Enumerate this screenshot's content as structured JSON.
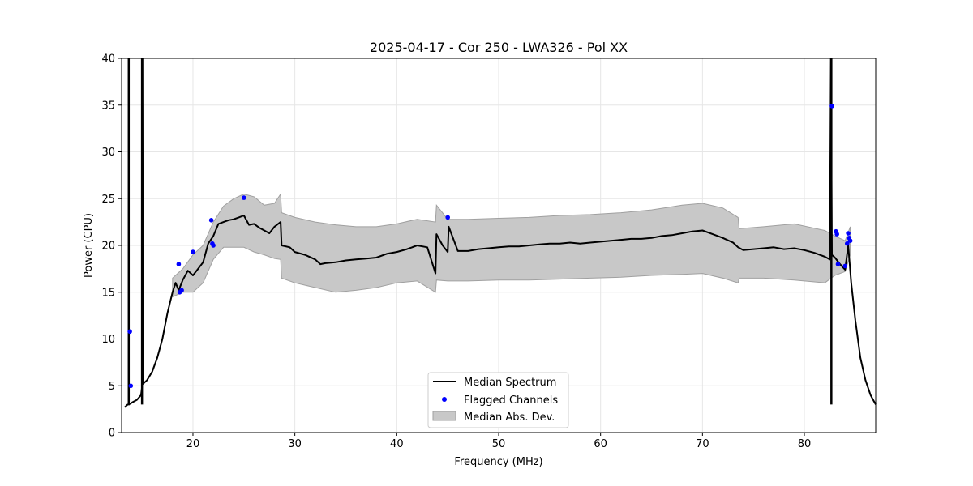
{
  "chart_data": {
    "type": "line",
    "title": "2025-04-17 - Cor 250 - LWA326 - Pol XX",
    "xlabel": "Frequency (MHz)",
    "ylabel": "Power (CPU)",
    "xlim": [
      13,
      87
    ],
    "ylim": [
      0,
      40
    ],
    "xticks": [
      20,
      30,
      40,
      50,
      60,
      70,
      80
    ],
    "yticks": [
      0,
      5,
      10,
      15,
      20,
      25,
      30,
      35,
      40
    ],
    "grid": true,
    "legend_position": "bottom-center",
    "legend": [
      "Median Spectrum",
      "Flagged Channels",
      "Median Abs. Dev."
    ],
    "colors": {
      "median": "#000000",
      "flagged": "#0000ff",
      "mad_fill": "#c8c8c8",
      "mad_edge": "#a0a0a0"
    },
    "series": [
      {
        "name": "Median Spectrum",
        "x": [
          13.3,
          13.6,
          13.75,
          13.8,
          13.9,
          14.0,
          14.5,
          14.9,
          15.0,
          15.05,
          15.1,
          15.5,
          16.0,
          16.5,
          17.0,
          17.5,
          18.0,
          18.3,
          18.6,
          19.0,
          19.5,
          20.0,
          20.5,
          21.0,
          21.5,
          22.0,
          22.5,
          23.0,
          23.5,
          24.0,
          24.5,
          25.0,
          25.5,
          26.0,
          26.5,
          27.0,
          27.5,
          28.0,
          28.6,
          28.7,
          29.5,
          30.0,
          31.0,
          32.0,
          32.5,
          33.0,
          34.0,
          35.0,
          36.0,
          37.0,
          38.0,
          39.0,
          40.0,
          41.0,
          42.0,
          43.0,
          43.8,
          43.9,
          44.5,
          45.0,
          45.1,
          46.0,
          47.0,
          48.0,
          49.0,
          50.0,
          51.0,
          52.0,
          53.0,
          54.0,
          55.0,
          56.0,
          57.0,
          58.0,
          59.0,
          60.0,
          61.0,
          62.0,
          63.0,
          64.0,
          65.0,
          66.0,
          67.0,
          68.0,
          69.0,
          70.0,
          71.0,
          72.0,
          73.0,
          73.5,
          74.0,
          75.0,
          76.0,
          77.0,
          78.0,
          79.0,
          80.0,
          81.0,
          82.0,
          82.5,
          82.6,
          82.7,
          83.0,
          83.5,
          84.0,
          84.3,
          84.6,
          85.0,
          85.5,
          86.0,
          86.5,
          87.0
        ],
        "values": [
          2.7,
          3.0,
          3.0,
          3.1,
          3.1,
          3.2,
          3.5,
          4.0,
          4.8,
          40,
          5.2,
          5.6,
          6.5,
          8.0,
          10.0,
          12.8,
          15.0,
          16.0,
          15.2,
          16.3,
          17.3,
          16.8,
          17.5,
          18.2,
          20.2,
          21.0,
          22.3,
          22.5,
          22.7,
          22.8,
          23.0,
          23.2,
          22.2,
          22.3,
          21.9,
          21.6,
          21.3,
          22.0,
          22.5,
          20.0,
          19.8,
          19.3,
          19.0,
          18.5,
          18.0,
          18.1,
          18.2,
          18.4,
          18.5,
          18.6,
          18.7,
          19.1,
          19.3,
          19.6,
          20.0,
          19.8,
          17.0,
          21.2,
          20.0,
          19.3,
          22.0,
          19.4,
          19.4,
          19.6,
          19.7,
          19.8,
          19.9,
          19.9,
          20.0,
          20.1,
          20.2,
          20.2,
          20.3,
          20.2,
          20.3,
          20.4,
          20.5,
          20.6,
          20.7,
          20.7,
          20.8,
          21.0,
          21.1,
          21.3,
          21.5,
          21.6,
          21.2,
          20.8,
          20.3,
          19.8,
          19.5,
          19.6,
          19.7,
          19.8,
          19.6,
          19.7,
          19.5,
          19.2,
          18.8,
          18.5,
          40,
          19.0,
          18.7,
          18.0,
          17.4,
          20.0,
          16.0,
          12.0,
          8.0,
          5.6,
          4.0,
          3.0
        ]
      }
    ],
    "spikes": [
      {
        "x": 13.7,
        "value": 40
      },
      {
        "x": 15.0,
        "value": 40
      },
      {
        "x": 82.65,
        "value": 40
      }
    ],
    "mad_band": {
      "x": [
        18.0,
        19.0,
        20.0,
        21.0,
        22.0,
        23.0,
        24.0,
        25.0,
        26.0,
        27.0,
        28.0,
        28.6,
        28.7,
        30.0,
        32.0,
        34.0,
        36.0,
        38.0,
        40.0,
        42.0,
        43.8,
        43.9,
        45.0,
        47.0,
        50.0,
        53.0,
        56.0,
        59.0,
        62.0,
        65.0,
        68.0,
        70.0,
        72.0,
        73.5,
        73.6,
        76.0,
        79.0,
        82.0,
        83.0,
        84.0,
        84.5
      ],
      "upper": [
        16.5,
        17.5,
        19.0,
        20.0,
        22.5,
        24.2,
        25.0,
        25.5,
        25.2,
        24.3,
        24.5,
        25.5,
        23.5,
        23.0,
        22.5,
        22.2,
        22.0,
        22.0,
        22.3,
        22.8,
        22.5,
        24.3,
        22.8,
        22.8,
        22.9,
        23.0,
        23.2,
        23.3,
        23.5,
        23.8,
        24.3,
        24.5,
        24.0,
        23.0,
        21.8,
        22.0,
        22.3,
        21.6,
        21.0,
        20.5,
        22.0
      ],
      "lower": [
        14.5,
        15.0,
        15.0,
        16.0,
        18.5,
        19.8,
        19.8,
        19.8,
        19.3,
        19.0,
        18.6,
        18.5,
        16.5,
        16.0,
        15.5,
        15.0,
        15.2,
        15.5,
        16.0,
        16.2,
        15.0,
        16.3,
        16.2,
        16.2,
        16.3,
        16.3,
        16.4,
        16.5,
        16.6,
        16.8,
        16.9,
        17.0,
        16.5,
        16.0,
        16.5,
        16.5,
        16.3,
        16.0,
        16.8,
        17.2,
        19.0
      ]
    },
    "flagged_channels": {
      "x": [
        13.8,
        13.9,
        18.6,
        18.7,
        18.9,
        20.0,
        21.8,
        21.9,
        22.0,
        25.0,
        45.0,
        82.7,
        83.1,
        83.2,
        83.3,
        84.0,
        84.2,
        84.3,
        84.4,
        84.5
      ],
      "values": [
        10.8,
        5.0,
        18.0,
        15.0,
        15.2,
        19.3,
        22.7,
        20.2,
        20.0,
        25.1,
        23.0,
        34.9,
        21.5,
        21.2,
        18.0,
        17.8,
        20.2,
        21.3,
        20.8,
        20.5
      ]
    }
  }
}
